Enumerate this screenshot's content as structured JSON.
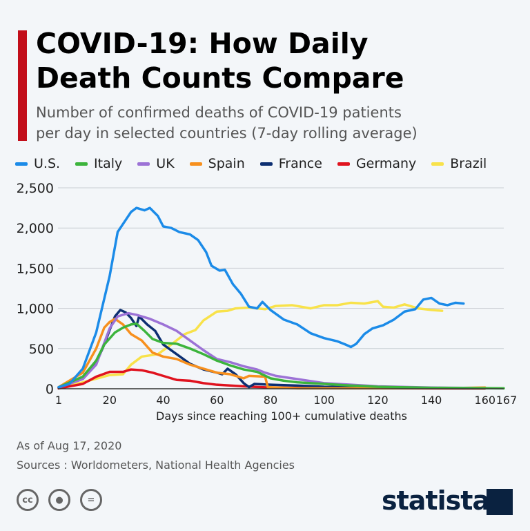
{
  "header": {
    "title_line1": "COVID-19: How Daily",
    "title_line2": "Death Counts Compare",
    "subtitle_line1": "Number of confirmed deaths of COVID-19 patients",
    "subtitle_line2": "per day in selected countries (7-day rolling average)"
  },
  "footer": {
    "as_of": "As of Aug 17, 2020",
    "sources": "Sources : Worldometers, National Health Agencies",
    "logo": "statista",
    "icons": [
      "cc-icon",
      "attribution-icon",
      "no-derivatives-icon"
    ]
  },
  "chart_data": {
    "type": "line",
    "title": "",
    "xlabel": "Days since reaching 100+ cumulative deaths",
    "ylabel": "",
    "xlim": [
      1,
      167
    ],
    "ylim": [
      0,
      2500
    ],
    "x_ticks": [
      "1",
      "20",
      "40",
      "60",
      "80",
      "100",
      "120",
      "140",
      "160",
      "167"
    ],
    "x_tick_values": [
      1,
      20,
      40,
      60,
      80,
      100,
      120,
      140,
      160,
      167
    ],
    "y_ticks": [
      "0",
      "500",
      "1,000",
      "1,500",
      "2,000",
      "2,500"
    ],
    "y_tick_values": [
      0,
      500,
      1000,
      1500,
      2000,
      2500
    ],
    "grid": true,
    "legend": "top",
    "series": [
      {
        "name": "U.S.",
        "color": "#1b8be8",
        "points": [
          [
            1,
            20
          ],
          [
            5,
            60
          ],
          [
            10,
            250
          ],
          [
            15,
            700
          ],
          [
            20,
            1400
          ],
          [
            23,
            1950
          ],
          [
            26,
            2100
          ],
          [
            28,
            2200
          ],
          [
            30,
            2250
          ],
          [
            33,
            2220
          ],
          [
            35,
            2250
          ],
          [
            38,
            2150
          ],
          [
            40,
            2020
          ],
          [
            43,
            2000
          ],
          [
            46,
            1950
          ],
          [
            50,
            1920
          ],
          [
            53,
            1850
          ],
          [
            56,
            1700
          ],
          [
            58,
            1530
          ],
          [
            61,
            1470
          ],
          [
            63,
            1480
          ],
          [
            66,
            1300
          ],
          [
            69,
            1180
          ],
          [
            72,
            1020
          ],
          [
            75,
            1000
          ],
          [
            77,
            1080
          ],
          [
            80,
            980
          ],
          [
            85,
            860
          ],
          [
            90,
            800
          ],
          [
            95,
            690
          ],
          [
            100,
            630
          ],
          [
            105,
            590
          ],
          [
            108,
            550
          ],
          [
            110,
            520
          ],
          [
            112,
            560
          ],
          [
            115,
            680
          ],
          [
            118,
            750
          ],
          [
            122,
            790
          ],
          [
            126,
            860
          ],
          [
            130,
            960
          ],
          [
            134,
            990
          ],
          [
            137,
            1110
          ],
          [
            140,
            1130
          ],
          [
            143,
            1060
          ],
          [
            146,
            1040
          ],
          [
            149,
            1070
          ],
          [
            152,
            1060
          ]
        ]
      },
      {
        "name": "Italy",
        "color": "#3cb43c",
        "points": [
          [
            1,
            20
          ],
          [
            10,
            150
          ],
          [
            15,
            350
          ],
          [
            18,
            550
          ],
          [
            22,
            700
          ],
          [
            25,
            760
          ],
          [
            28,
            800
          ],
          [
            30,
            810
          ],
          [
            33,
            720
          ],
          [
            36,
            620
          ],
          [
            40,
            570
          ],
          [
            45,
            560
          ],
          [
            50,
            500
          ],
          [
            55,
            430
          ],
          [
            60,
            350
          ],
          [
            65,
            290
          ],
          [
            70,
            240
          ],
          [
            75,
            210
          ],
          [
            80,
            130
          ],
          [
            85,
            100
          ],
          [
            90,
            80
          ],
          [
            100,
            60
          ],
          [
            110,
            40
          ],
          [
            120,
            25
          ],
          [
            140,
            12
          ],
          [
            167,
            5
          ]
        ]
      },
      {
        "name": "UK",
        "color": "#9c72d6",
        "points": [
          [
            1,
            15
          ],
          [
            10,
            120
          ],
          [
            15,
            300
          ],
          [
            20,
            750
          ],
          [
            23,
            900
          ],
          [
            27,
            940
          ],
          [
            30,
            920
          ],
          [
            35,
            870
          ],
          [
            40,
            800
          ],
          [
            45,
            720
          ],
          [
            50,
            600
          ],
          [
            55,
            480
          ],
          [
            60,
            370
          ],
          [
            65,
            330
          ],
          [
            70,
            280
          ],
          [
            75,
            240
          ],
          [
            78,
            200
          ],
          [
            82,
            160
          ],
          [
            90,
            120
          ],
          [
            100,
            70
          ],
          [
            110,
            50
          ],
          [
            120,
            30
          ],
          [
            140,
            15
          ],
          [
            155,
            10
          ]
        ]
      },
      {
        "name": "Spain",
        "color": "#f7901e",
        "points": [
          [
            1,
            20
          ],
          [
            10,
            200
          ],
          [
            15,
            500
          ],
          [
            18,
            760
          ],
          [
            20,
            830
          ],
          [
            22,
            870
          ],
          [
            25,
            800
          ],
          [
            28,
            680
          ],
          [
            32,
            600
          ],
          [
            36,
            450
          ],
          [
            40,
            400
          ],
          [
            45,
            370
          ],
          [
            50,
            300
          ],
          [
            55,
            250
          ],
          [
            60,
            200
          ],
          [
            65,
            180
          ],
          [
            70,
            130
          ],
          [
            72,
            160
          ],
          [
            78,
            150
          ],
          [
            79,
            20
          ],
          [
            90,
            5
          ],
          [
            120,
            5
          ],
          [
            150,
            10
          ],
          [
            160,
            15
          ]
        ]
      },
      {
        "name": "France",
        "color": "#0d2f72",
        "points": [
          [
            1,
            15
          ],
          [
            10,
            130
          ],
          [
            15,
            320
          ],
          [
            18,
            550
          ],
          [
            20,
            730
          ],
          [
            22,
            900
          ],
          [
            24,
            980
          ],
          [
            26,
            950
          ],
          [
            28,
            880
          ],
          [
            30,
            780
          ],
          [
            31,
            900
          ],
          [
            34,
            800
          ],
          [
            37,
            720
          ],
          [
            40,
            550
          ],
          [
            45,
            430
          ],
          [
            50,
            310
          ],
          [
            55,
            240
          ],
          [
            60,
            200
          ],
          [
            62,
            180
          ],
          [
            64,
            250
          ],
          [
            67,
            180
          ],
          [
            70,
            70
          ],
          [
            72,
            20
          ],
          [
            74,
            60
          ],
          [
            80,
            50
          ],
          [
            90,
            40
          ],
          [
            100,
            25
          ],
          [
            120,
            15
          ],
          [
            140,
            10
          ],
          [
            160,
            8
          ]
        ]
      },
      {
        "name": "Germany",
        "color": "#e0131f",
        "points": [
          [
            1,
            5
          ],
          [
            10,
            60
          ],
          [
            15,
            150
          ],
          [
            20,
            210
          ],
          [
            25,
            210
          ],
          [
            28,
            240
          ],
          [
            32,
            230
          ],
          [
            36,
            200
          ],
          [
            40,
            160
          ],
          [
            45,
            110
          ],
          [
            50,
            100
          ],
          [
            55,
            70
          ],
          [
            60,
            50
          ],
          [
            70,
            30
          ],
          [
            80,
            15
          ],
          [
            100,
            8
          ],
          [
            130,
            5
          ],
          [
            160,
            3
          ]
        ]
      },
      {
        "name": "Brazil",
        "color": "#f8e24a",
        "points": [
          [
            1,
            10
          ],
          [
            10,
            80
          ],
          [
            20,
            170
          ],
          [
            25,
            180
          ],
          [
            28,
            300
          ],
          [
            32,
            400
          ],
          [
            38,
            430
          ],
          [
            43,
            550
          ],
          [
            48,
            680
          ],
          [
            52,
            730
          ],
          [
            55,
            850
          ],
          [
            60,
            960
          ],
          [
            64,
            970
          ],
          [
            67,
            1000
          ],
          [
            72,
            1010
          ],
          [
            78,
            990
          ],
          [
            82,
            1030
          ],
          [
            88,
            1040
          ],
          [
            95,
            1000
          ],
          [
            100,
            1040
          ],
          [
            105,
            1040
          ],
          [
            110,
            1070
          ],
          [
            115,
            1060
          ],
          [
            120,
            1090
          ],
          [
            122,
            1020
          ],
          [
            126,
            1010
          ],
          [
            130,
            1050
          ],
          [
            135,
            1000
          ],
          [
            140,
            980
          ],
          [
            144,
            970
          ]
        ]
      }
    ]
  }
}
